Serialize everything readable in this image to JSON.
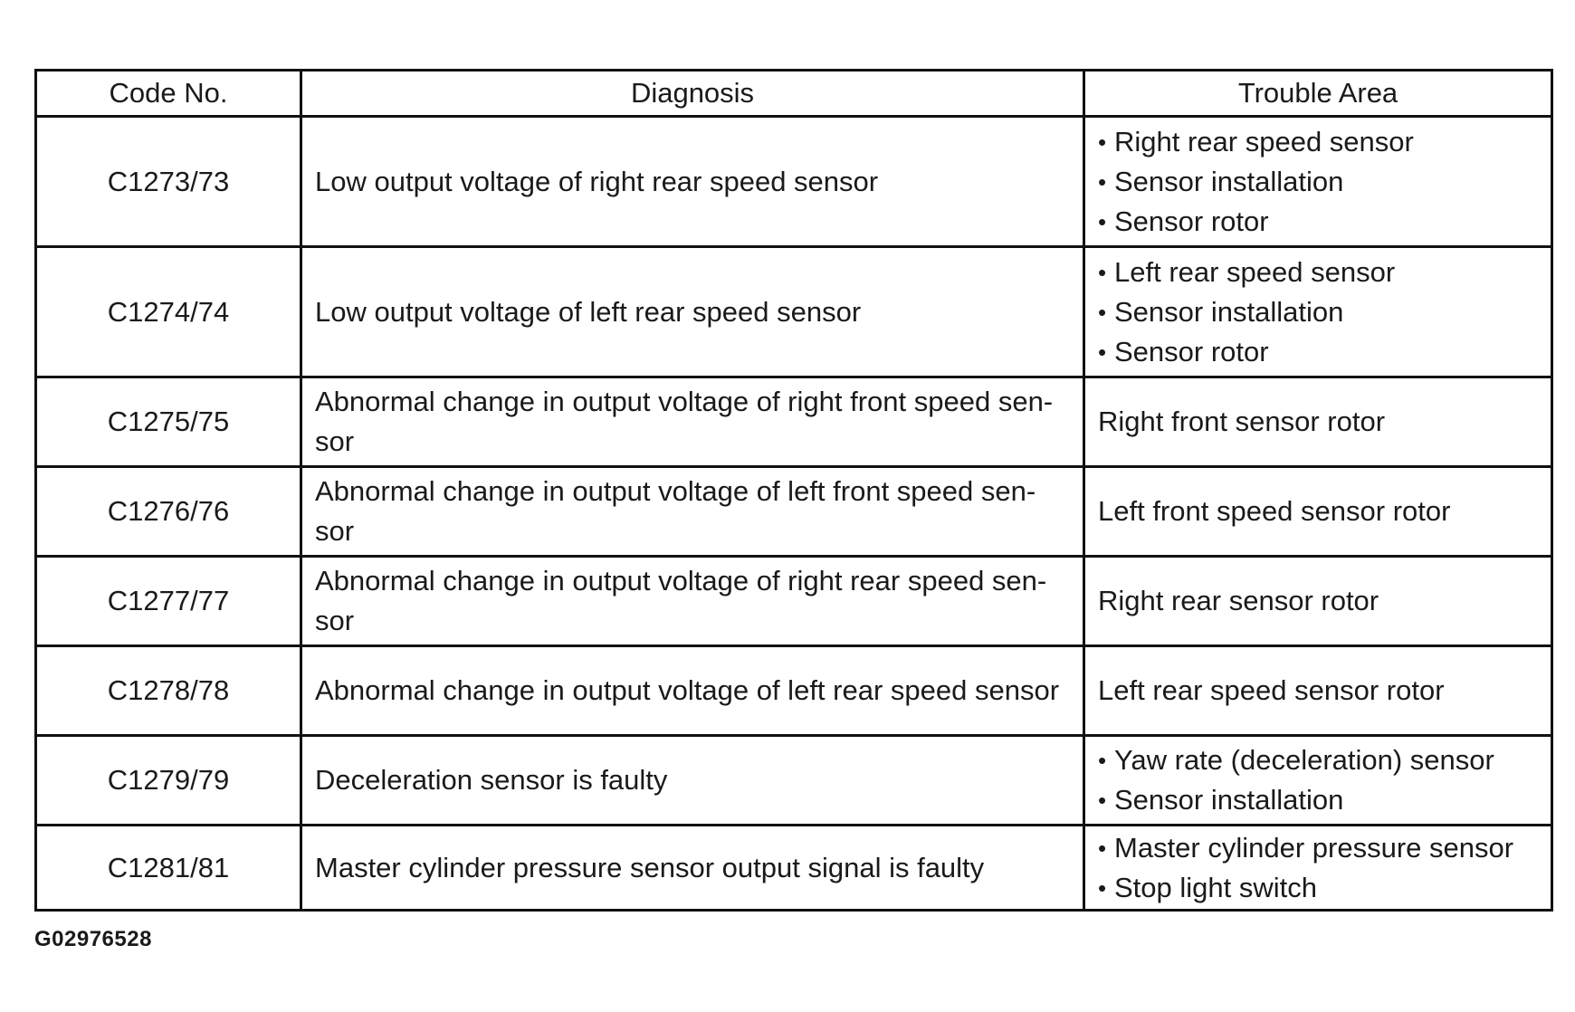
{
  "table": {
    "headers": {
      "code": "Code No.",
      "diagnosis": "Diagnosis",
      "trouble_area": "Trouble Area"
    },
    "rows": [
      {
        "code": "C1273/73",
        "diagnosis": "Low output voltage of right rear speed sensor",
        "trouble_area": [
          "Right rear speed sensor",
          "Sensor installation",
          "Sensor rotor"
        ]
      },
      {
        "code": "C1274/74",
        "diagnosis": "Low output voltage of left rear speed sensor",
        "trouble_area": [
          "Left rear speed sensor",
          "Sensor installation",
          "Sensor rotor"
        ]
      },
      {
        "code": "C1275/75",
        "diagnosis_lines": [
          "Abnormal change in output voltage of right front speed sen-",
          "sor"
        ],
        "trouble_area_text": "Right front sensor rotor"
      },
      {
        "code": "C1276/76",
        "diagnosis_lines": [
          "Abnormal change in output voltage of left front speed sen-",
          "sor"
        ],
        "trouble_area_text": "Left front speed sensor rotor"
      },
      {
        "code": "C1277/77",
        "diagnosis_lines": [
          "Abnormal change in output voltage of right rear speed sen-",
          "sor"
        ],
        "trouble_area_text": "Right rear sensor rotor"
      },
      {
        "code": "C1278/78",
        "diagnosis": "Abnormal change in output voltage of left rear speed sensor",
        "trouble_area_text": "Left rear speed sensor rotor"
      },
      {
        "code": "C1279/79",
        "diagnosis": "Deceleration sensor is faulty",
        "trouble_area": [
          "Yaw rate (deceleration) sensor",
          "Sensor installation"
        ]
      },
      {
        "code": "C1281/81",
        "diagnosis": "Master cylinder pressure sensor output signal is faulty",
        "trouble_area": [
          "Master cylinder pressure sensor",
          "Stop light switch"
        ]
      }
    ]
  },
  "figure_id": "G02976528"
}
